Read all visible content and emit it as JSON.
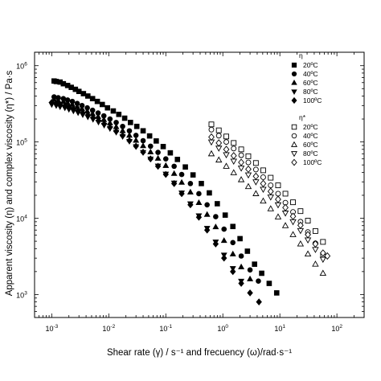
{
  "chart_data": {
    "type": "scatter",
    "title": "",
    "xlabel": "Shear rate (γ) / s⁻¹ and frecuency (ω)/rad·s⁻¹",
    "ylabel": "Apparent viscosity (η) and complex viscosity (η*) / Pa·s",
    "x_scale": "log",
    "y_scale": "log",
    "xlim": [
      0.0005,
      300
    ],
    "ylim": [
      500,
      1500000
    ],
    "grid": false,
    "x_ticks": [
      {
        "value": 0.001,
        "base": "10",
        "exp": "-3"
      },
      {
        "value": 0.01,
        "base": "10",
        "exp": "-2"
      },
      {
        "value": 0.1,
        "base": "10",
        "exp": "-1"
      },
      {
        "value": 1,
        "base": "10",
        "exp": "0"
      },
      {
        "value": 10,
        "base": "10",
        "exp": "1"
      },
      {
        "value": 100,
        "base": "10",
        "exp": "2"
      }
    ],
    "y_ticks": [
      {
        "value": 1000,
        "base": "10",
        "exp": "3"
      },
      {
        "value": 10000,
        "base": "10",
        "exp": "4"
      },
      {
        "value": 100000,
        "base": "10",
        "exp": "5"
      },
      {
        "value": 1000000,
        "base": "10",
        "exp": "6"
      }
    ],
    "legend": {
      "placement": "top-right",
      "groups": [
        {
          "title": "η",
          "entries": [
            "20ºC",
            "40ºC",
            "60ºC",
            "80ºC",
            "100ºC"
          ]
        },
        {
          "title": "η*",
          "entries": [
            "20ºC",
            "40ºC",
            "60ºC",
            "80ºC",
            "100ºC"
          ]
        }
      ]
    },
    "series": [
      {
        "name": "η 20ºC",
        "marker": "square",
        "filled": true,
        "color": "#000000",
        "x": [
          0.0011,
          0.0012,
          0.0014,
          0.0016,
          0.0019,
          0.0022,
          0.0026,
          0.003,
          0.0036,
          0.0043,
          0.0052,
          0.0063,
          0.0077,
          0.0095,
          0.012,
          0.015,
          0.019,
          0.024,
          0.031,
          0.04,
          0.052,
          0.068,
          0.09,
          0.12,
          0.16,
          0.22,
          0.3,
          0.42,
          0.58,
          0.8,
          1.1,
          1.5,
          2.0,
          2.7,
          3.6,
          4.8,
          6.5,
          8.8
        ],
        "y": [
          630000,
          620000,
          610000,
          580000,
          550000,
          520000,
          490000,
          460000,
          430000,
          400000,
          370000,
          340000,
          310000,
          280000,
          255000,
          230000,
          205000,
          180000,
          160000,
          140000,
          120000,
          103000,
          87000,
          72000,
          59000,
          47000,
          37000,
          28500,
          21500,
          15500,
          11000,
          7800,
          5400,
          3700,
          2500,
          1900,
          1400,
          1050
        ]
      },
      {
        "name": "η 40ºC",
        "marker": "circle",
        "filled": true,
        "color": "#000000",
        "x": [
          0.0011,
          0.0013,
          0.0016,
          0.0019,
          0.0023,
          0.0028,
          0.0034,
          0.0042,
          0.0052,
          0.0065,
          0.0082,
          0.0105,
          0.0135,
          0.0175,
          0.023,
          0.03,
          0.04,
          0.054,
          0.073,
          0.1,
          0.14,
          0.19,
          0.27,
          0.38,
          0.53,
          0.75,
          1.05,
          1.5,
          2.1,
          3.0,
          4.2
        ],
        "y": [
          390000,
          380000,
          370000,
          355000,
          340000,
          320000,
          300000,
          280000,
          260000,
          240000,
          220000,
          200000,
          180000,
          160000,
          140000,
          122000,
          104000,
          88000,
          73000,
          60000,
          48000,
          37500,
          28500,
          21000,
          15000,
          10500,
          7200,
          4800,
          3200,
          2100,
          1500
        ]
      },
      {
        "name": "η 60ºC",
        "marker": "triangle-up",
        "filled": true,
        "color": "#000000",
        "x": [
          0.0011,
          0.0013,
          0.0016,
          0.0019,
          0.0023,
          0.0028,
          0.0034,
          0.0042,
          0.0052,
          0.0065,
          0.0082,
          0.0105,
          0.0135,
          0.0175,
          0.023,
          0.03,
          0.04,
          0.054,
          0.073,
          0.1,
          0.14,
          0.19,
          0.27,
          0.38,
          0.53,
          0.75,
          1.05,
          1.5,
          2.1,
          3.0
        ],
        "y": [
          360000,
          350000,
          340000,
          325000,
          310000,
          290000,
          272000,
          253000,
          234000,
          215000,
          196000,
          177000,
          158000,
          140000,
          122000,
          105000,
          89000,
          74000,
          61000,
          49000,
          38500,
          29500,
          22000,
          16000,
          11200,
          7700,
          5100,
          3400,
          2300,
          1600
        ]
      },
      {
        "name": "η 80ºC",
        "marker": "triangle-down",
        "filled": true,
        "color": "#000000",
        "x": [
          0.001,
          0.0012,
          0.0014,
          0.0017,
          0.002,
          0.0024,
          0.0029,
          0.0035,
          0.0043,
          0.0053,
          0.0066,
          0.0083,
          0.0105,
          0.0135,
          0.0175,
          0.023,
          0.03,
          0.04,
          0.054,
          0.073,
          0.1,
          0.14,
          0.19,
          0.27,
          0.38,
          0.53,
          0.75,
          1.05,
          1.5,
          2.1
        ],
        "y": [
          310000,
          300000,
          290000,
          280000,
          268000,
          255000,
          242000,
          228000,
          213000,
          198000,
          182000,
          166000,
          150000,
          134000,
          118000,
          102000,
          87000,
          73000,
          60000,
          48500,
          38000,
          29000,
          21500,
          15500,
          10800,
          7400,
          4900,
          3300,
          2200,
          1500
        ]
      },
      {
        "name": "η 100ºC",
        "marker": "diamond",
        "filled": true,
        "color": "#000000",
        "x": [
          0.001,
          0.0012,
          0.0014,
          0.0017,
          0.002,
          0.0024,
          0.0029,
          0.0035,
          0.0043,
          0.0053,
          0.0066,
          0.0083,
          0.0105,
          0.0135,
          0.0175,
          0.023,
          0.03,
          0.04,
          0.054,
          0.073,
          0.1,
          0.14,
          0.19,
          0.27,
          0.38,
          0.53,
          0.75,
          1.05,
          1.5,
          2.1,
          3.0,
          4.3
        ],
        "y": [
          330000,
          320000,
          310000,
          298000,
          285000,
          271000,
          256000,
          240000,
          224000,
          207000,
          190000,
          172000,
          155000,
          138000,
          121000,
          104000,
          88000,
          73500,
          60000,
          48000,
          37500,
          28500,
          21000,
          15000,
          10300,
          7000,
          4600,
          3000,
          2000,
          1400,
          1050,
          800
        ]
      },
      {
        "name": "η* 20ºC",
        "marker": "square",
        "filled": false,
        "color": "#000000",
        "x": [
          0.63,
          0.85,
          1.15,
          1.55,
          2.1,
          2.8,
          3.8,
          5.1,
          6.9,
          9.3,
          12.5,
          17,
          23,
          31,
          42,
          57
        ],
        "y": [
          170000,
          142000,
          118000,
          97000,
          80000,
          65000,
          53000,
          42500,
          34000,
          27000,
          21000,
          16200,
          12400,
          9300,
          6800,
          4900
        ]
      },
      {
        "name": "η* 40ºC",
        "marker": "circle",
        "filled": false,
        "color": "#000000",
        "x": [
          0.63,
          0.85,
          1.15,
          1.55,
          2.1,
          2.8,
          3.8,
          5.1,
          6.9,
          9.3,
          12.5,
          17,
          23,
          31,
          42,
          57
        ],
        "y": [
          145000,
          121000,
          100000,
          82000,
          67000,
          54000,
          43500,
          34500,
          27000,
          21000,
          16000,
          12100,
          9000,
          6600,
          4700,
          3300
        ]
      },
      {
        "name": "η* 60ºC",
        "marker": "triangle-up",
        "filled": false,
        "color": "#000000",
        "x": [
          0.63,
          0.85,
          1.15,
          1.55,
          2.1,
          2.8,
          3.8,
          5.1,
          6.9,
          9.3,
          12.5,
          17,
          23,
          31,
          42,
          57
        ],
        "y": [
          70000,
          58000,
          48000,
          39500,
          32000,
          26000,
          21000,
          16800,
          13300,
          10400,
          8000,
          6100,
          4600,
          3400,
          2500,
          1900
        ]
      },
      {
        "name": "η* 80ºC",
        "marker": "triangle-down",
        "filled": false,
        "color": "#000000",
        "x": [
          0.63,
          0.85,
          1.15,
          1.55,
          2.1,
          2.8,
          3.8,
          5.1,
          6.9,
          9.3,
          12.5,
          17,
          23,
          31,
          42,
          57
        ],
        "y": [
          100000,
          83000,
          68000,
          56000,
          45500,
          37000,
          30000,
          24000,
          19000,
          15000,
          11700,
          9000,
          6900,
          5200,
          3900,
          2900
        ]
      },
      {
        "name": "η* 100ºC",
        "marker": "diamond",
        "filled": false,
        "color": "#000000",
        "x": [
          0.63,
          0.85,
          1.15,
          1.55,
          2.1,
          2.8,
          3.8,
          5.1,
          6.9,
          9.3,
          12.5,
          17,
          23,
          31,
          42,
          57,
          68
        ],
        "y": [
          116000,
          97000,
          80000,
          66000,
          54000,
          44000,
          35500,
          28500,
          22500,
          17700,
          13800,
          10600,
          8100,
          6100,
          4600,
          3500,
          3200
        ]
      }
    ]
  }
}
